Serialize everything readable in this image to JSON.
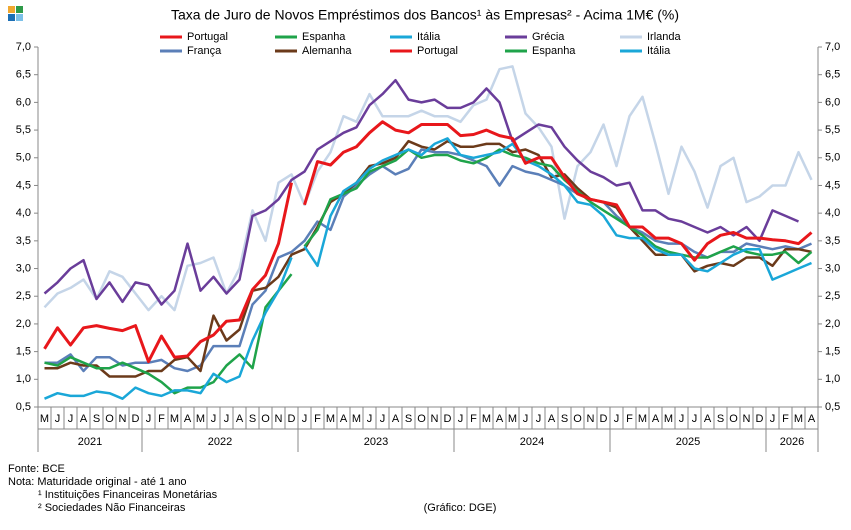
{
  "chart_data": {
    "type": "line",
    "title": "Taxa de Juro de Novos Empréstimos  dos Bancos¹ às Empresas² - Acima 1M€ (%)",
    "categories": [
      "M",
      "J",
      "J",
      "A",
      "S",
      "O",
      "N",
      "D",
      "J",
      "F",
      "M",
      "A",
      "M",
      "J",
      "J",
      "A",
      "S",
      "O",
      "N",
      "D",
      "J",
      "F",
      "M",
      "A",
      "M",
      "J",
      "J",
      "A",
      "S",
      "O",
      "N",
      "D",
      "J",
      "F",
      "M",
      "A",
      "M",
      "J",
      "J",
      "A",
      "S",
      "O",
      "N",
      "D",
      "J",
      "F",
      "M",
      "A",
      "M",
      "J",
      "J",
      "A",
      "S",
      "O",
      "N",
      "D",
      "J",
      "F",
      "M",
      "A"
    ],
    "years": [
      "2021",
      "2022",
      "2023",
      "2024",
      "2025",
      "2026"
    ],
    "ylim": [
      0.5,
      7.0
    ],
    "yticks": [
      {
        "value": 0.5,
        "label": "0,5"
      },
      {
        "value": 1.0,
        "label": "1,0"
      },
      {
        "value": 1.5,
        "label": "1,5"
      },
      {
        "value": 2.0,
        "label": "2,0"
      },
      {
        "value": 2.5,
        "label": "2,5"
      },
      {
        "value": 3.0,
        "label": "3,0"
      },
      {
        "value": 3.5,
        "label": "3,5"
      },
      {
        "value": 4.0,
        "label": "4,0"
      },
      {
        "value": 4.5,
        "label": "4,5"
      },
      {
        "value": 5.0,
        "label": "5,0"
      },
      {
        "value": 5.5,
        "label": "5,5"
      },
      {
        "value": 6.0,
        "label": "6,0"
      },
      {
        "value": 6.5,
        "label": "6,5"
      },
      {
        "value": 7.0,
        "label": "7,0"
      }
    ],
    "grid": false,
    "series": [
      {
        "name": "Portugal",
        "color": "#e8171b",
        "values": [
          1.55,
          1.93,
          1.62,
          1.93,
          1.97,
          1.92,
          1.88,
          1.97,
          1.32,
          1.78,
          1.4,
          1.42,
          1.68,
          1.8,
          2.05,
          2.07,
          2.62,
          2.88,
          3.45,
          4.55,
          null,
          null,
          null,
          null,
          null,
          null,
          null,
          null,
          null,
          null,
          null,
          null,
          null,
          null,
          null,
          null,
          null,
          null,
          null,
          null,
          null,
          null,
          null,
          null,
          null,
          null,
          null,
          null,
          null,
          null,
          null,
          null,
          null,
          null,
          null,
          null,
          null,
          null,
          null,
          null
        ]
      },
      {
        "name": "Espanha",
        "color": "#1fa34a",
        "values": [
          1.3,
          1.25,
          1.4,
          1.3,
          1.2,
          1.2,
          1.3,
          1.2,
          1.1,
          0.95,
          0.75,
          0.85,
          0.85,
          0.95,
          1.25,
          1.45,
          1.2,
          2.3,
          2.6,
          2.9,
          null,
          null,
          null,
          null,
          null,
          null,
          null,
          null,
          null,
          null,
          null,
          null,
          null,
          null,
          null,
          null,
          null,
          null,
          null,
          null,
          null,
          null,
          null,
          null,
          null,
          null,
          null,
          null,
          null,
          null,
          null,
          null,
          null,
          null,
          null,
          null,
          null,
          null,
          null,
          null
        ]
      },
      {
        "name": "Itália",
        "color": "#1aa7d8",
        "values": [
          0.65,
          0.75,
          0.7,
          0.7,
          0.78,
          0.75,
          0.65,
          0.85,
          0.75,
          0.7,
          0.8,
          0.8,
          0.75,
          1.1,
          0.95,
          1.05,
          1.7,
          2.2,
          2.6,
          3.2,
          null,
          null,
          null,
          null,
          null,
          null,
          null,
          null,
          null,
          null,
          null,
          null,
          null,
          null,
          null,
          null,
          null,
          null,
          null,
          null,
          null,
          null,
          null,
          null,
          null,
          null,
          null,
          null,
          null,
          null,
          null,
          null,
          null,
          null,
          null,
          null,
          null,
          null,
          null,
          null
        ]
      },
      {
        "name": "Grécia",
        "color": "#6a3d9a",
        "values": [
          2.55,
          2.75,
          3.0,
          3.15,
          2.45,
          2.75,
          2.4,
          2.75,
          2.7,
          2.35,
          2.6,
          3.45,
          2.6,
          2.85,
          2.55,
          2.8,
          3.95,
          4.05,
          4.25,
          4.6,
          4.75,
          5.15,
          5.3,
          5.45,
          5.55,
          5.95,
          6.15,
          6.4,
          6.05,
          6.0,
          6.05,
          5.9,
          5.9,
          6.0,
          6.25,
          6.0,
          5.3,
          5.45,
          5.6,
          5.55,
          5.2,
          4.95,
          4.75,
          4.65,
          4.5,
          4.55,
          4.05,
          4.05,
          3.9,
          3.85,
          3.75,
          3.65,
          3.75,
          3.6,
          3.75,
          3.5,
          4.05,
          3.95,
          3.85,
          null
        ]
      },
      {
        "name": "Irlanda",
        "color": "#c5d5e8",
        "values": [
          2.3,
          2.55,
          2.65,
          2.8,
          2.45,
          2.95,
          2.85,
          2.55,
          2.25,
          2.5,
          2.25,
          3.05,
          3.1,
          3.2,
          2.55,
          3.0,
          4.05,
          3.5,
          4.55,
          4.7,
          4.15,
          4.75,
          5.1,
          5.75,
          5.65,
          6.15,
          5.75,
          5.75,
          5.75,
          5.85,
          5.75,
          5.75,
          5.65,
          5.95,
          6.05,
          6.6,
          6.65,
          5.8,
          5.55,
          5.2,
          3.9,
          4.85,
          5.1,
          5.6,
          4.85,
          5.75,
          6.1,
          5.25,
          4.35,
          5.2,
          4.75,
          4.1,
          4.85,
          5.0,
          4.2,
          4.3,
          4.5,
          4.5,
          5.1,
          4.6
        ]
      },
      {
        "name": "França",
        "color": "#5b7fb8",
        "values": [
          1.3,
          1.3,
          1.45,
          1.15,
          1.4,
          1.4,
          1.25,
          1.3,
          1.3,
          1.35,
          1.2,
          1.15,
          1.25,
          1.6,
          1.6,
          1.6,
          2.35,
          2.6,
          3.2,
          3.3,
          3.5,
          3.85,
          3.7,
          4.3,
          4.5,
          4.7,
          4.85,
          4.7,
          4.8,
          5.15,
          5.1,
          5.1,
          5.05,
          4.95,
          4.85,
          4.5,
          4.85,
          4.75,
          4.7,
          4.6,
          4.5,
          4.35,
          4.25,
          4.2,
          3.95,
          3.75,
          3.65,
          3.5,
          3.45,
          3.45,
          3.3,
          3.2,
          3.3,
          3.3,
          3.45,
          3.4,
          3.35,
          3.4,
          3.35,
          3.45
        ]
      },
      {
        "name": "Alemanha",
        "color": "#6b3a1a",
        "values": [
          1.2,
          1.2,
          1.3,
          1.25,
          1.25,
          1.05,
          1.05,
          1.05,
          1.15,
          1.15,
          1.35,
          1.4,
          1.15,
          2.15,
          1.7,
          1.9,
          2.6,
          2.65,
          2.85,
          3.25,
          3.35,
          3.75,
          4.2,
          4.35,
          4.55,
          4.85,
          4.9,
          5.0,
          5.3,
          5.2,
          5.15,
          5.3,
          5.2,
          5.2,
          5.25,
          5.25,
          5.1,
          5.15,
          5.05,
          4.65,
          4.7,
          4.45,
          4.25,
          4.2,
          4.1,
          3.75,
          3.5,
          3.25,
          3.25,
          3.25,
          2.95,
          3.05,
          3.1,
          3.05,
          3.2,
          3.2,
          3.05,
          3.35,
          3.35,
          3.3
        ]
      },
      {
        "name": "Portugal",
        "color": "#e8171b",
        "values": [
          null,
          null,
          null,
          null,
          null,
          null,
          null,
          null,
          null,
          null,
          null,
          null,
          null,
          null,
          null,
          null,
          null,
          null,
          null,
          null,
          4.15,
          4.93,
          4.87,
          5.1,
          5.2,
          5.45,
          5.65,
          5.5,
          5.45,
          5.6,
          5.6,
          5.6,
          5.4,
          5.42,
          5.5,
          5.4,
          5.35,
          4.9,
          5.0,
          5.0,
          4.65,
          4.35,
          4.25,
          4.2,
          4.15,
          3.75,
          3.75,
          3.55,
          3.55,
          3.45,
          3.15,
          3.45,
          3.6,
          3.65,
          3.55,
          3.55,
          3.52,
          3.5,
          3.45,
          3.65
        ]
      },
      {
        "name": "Espanha",
        "color": "#1fa34a",
        "values": [
          null,
          null,
          null,
          null,
          null,
          null,
          null,
          null,
          null,
          null,
          null,
          null,
          null,
          null,
          null,
          null,
          null,
          null,
          null,
          null,
          3.4,
          3.7,
          4.25,
          4.35,
          4.45,
          4.75,
          4.85,
          4.95,
          5.15,
          5.0,
          5.05,
          5.05,
          4.95,
          4.9,
          5.0,
          5.15,
          5.05,
          5.0,
          4.9,
          4.85,
          4.6,
          4.4,
          4.2,
          4.05,
          3.9,
          3.75,
          3.6,
          3.4,
          3.3,
          3.25,
          3.2,
          3.2,
          3.3,
          3.4,
          3.3,
          3.25,
          3.25,
          3.3,
          3.1,
          3.3
        ]
      },
      {
        "name": "Itália",
        "color": "#1aa7d8",
        "values": [
          null,
          null,
          null,
          null,
          null,
          null,
          null,
          null,
          null,
          null,
          null,
          null,
          null,
          null,
          null,
          null,
          null,
          null,
          null,
          null,
          3.4,
          3.05,
          3.95,
          4.4,
          4.55,
          4.8,
          4.95,
          5.05,
          5.15,
          5.05,
          5.25,
          5.35,
          5.05,
          5.0,
          5.05,
          5.1,
          5.25,
          4.95,
          4.85,
          4.7,
          4.5,
          4.2,
          4.15,
          3.95,
          3.6,
          3.55,
          3.55,
          3.35,
          3.25,
          3.25,
          3.0,
          2.95,
          3.1,
          3.25,
          3.35,
          3.35,
          2.8,
          2.9,
          3.0,
          3.1
        ]
      }
    ],
    "notes": [
      "Fonte: BCE",
      "Nota: Maturidade original - até 1 ano",
      "¹ Instituições Financeiras Monetárias",
      "² Sociedades Não Financeiras"
    ],
    "credit": "(Gráfico: DGE)"
  }
}
